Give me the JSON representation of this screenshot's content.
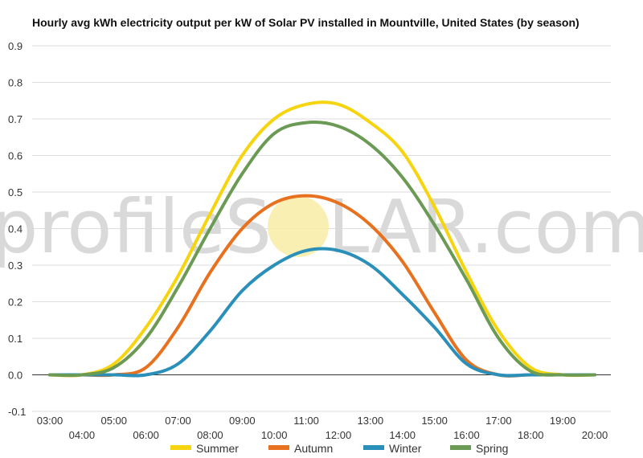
{
  "chart_data": {
    "type": "line",
    "title": "Hourly avg kWh electricity output per kW of Solar PV installed in Mountville, United States (by season)",
    "watermark": {
      "left": "profileS",
      "right": "LAR.com"
    },
    "xlabel": "",
    "ylabel": "",
    "ylim": [
      -0.1,
      0.9
    ],
    "yticks": [
      "-0.1",
      "0.0",
      "0.1",
      "0.2",
      "0.3",
      "0.4",
      "0.5",
      "0.6",
      "0.7",
      "0.8",
      "0.9"
    ],
    "x": [
      "03:00",
      "04:00",
      "05:00",
      "06:00",
      "07:00",
      "08:00",
      "09:00",
      "10:00",
      "11:00",
      "12:00",
      "13:00",
      "14:00",
      "15:00",
      "16:00",
      "17:00",
      "18:00",
      "19:00",
      "20:00"
    ],
    "grid": true,
    "legend_position": "bottom",
    "series": [
      {
        "name": "Summer",
        "color": "#f6d410",
        "values": [
          0.0,
          0.0,
          0.03,
          0.13,
          0.27,
          0.44,
          0.6,
          0.7,
          0.74,
          0.74,
          0.69,
          0.61,
          0.46,
          0.28,
          0.12,
          0.02,
          0.0,
          0.0
        ]
      },
      {
        "name": "Autumn",
        "color": "#e8711f",
        "values": [
          0.0,
          0.0,
          0.0,
          0.02,
          0.13,
          0.28,
          0.4,
          0.47,
          0.49,
          0.47,
          0.41,
          0.31,
          0.17,
          0.04,
          0.0,
          0.0,
          0.0,
          0.0
        ]
      },
      {
        "name": "Winter",
        "color": "#2a8fb9",
        "values": [
          0.0,
          0.0,
          0.0,
          0.0,
          0.03,
          0.12,
          0.23,
          0.3,
          0.34,
          0.34,
          0.3,
          0.22,
          0.13,
          0.03,
          0.0,
          0.0,
          0.0,
          0.0
        ]
      },
      {
        "name": "Spring",
        "color": "#6b9a55",
        "values": [
          0.0,
          0.0,
          0.02,
          0.1,
          0.24,
          0.4,
          0.55,
          0.66,
          0.69,
          0.68,
          0.63,
          0.54,
          0.41,
          0.26,
          0.1,
          0.01,
          0.0,
          0.0
        ]
      }
    ]
  }
}
